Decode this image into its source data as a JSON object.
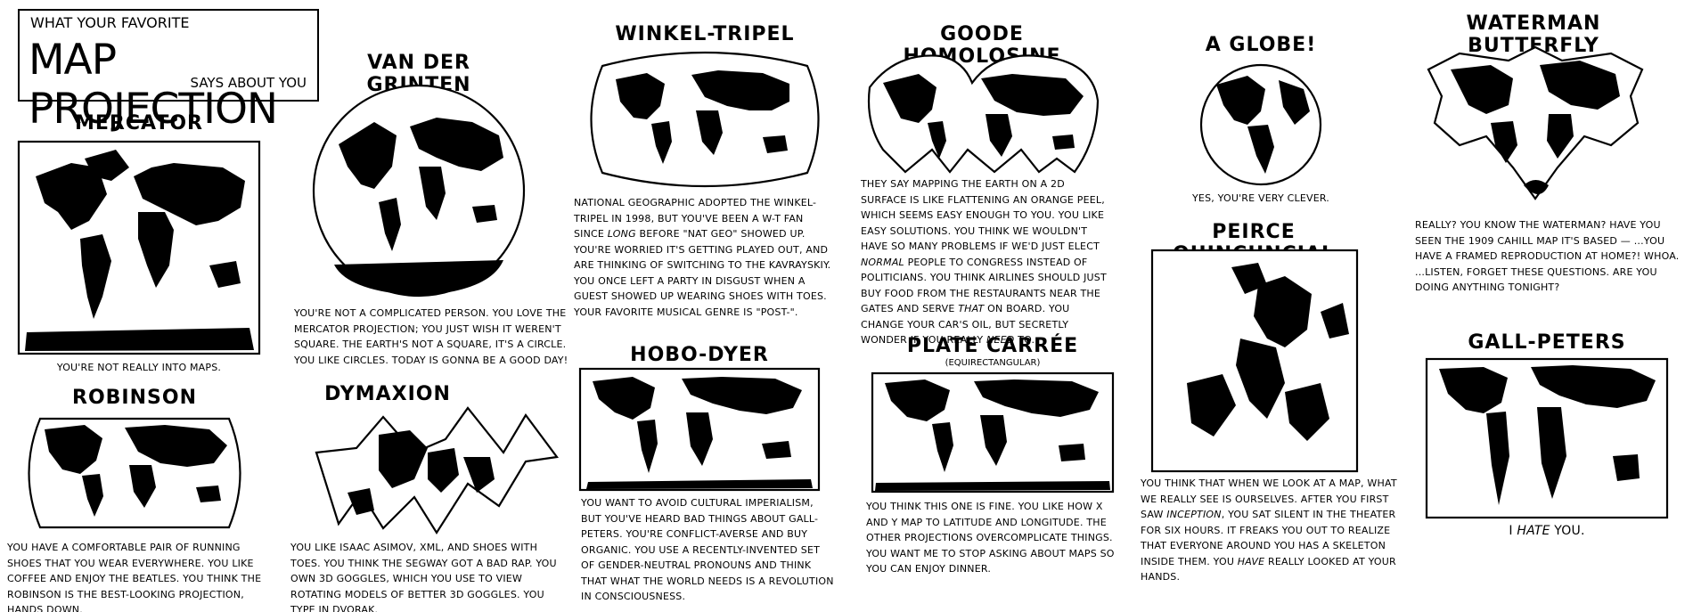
{
  "header": {
    "top": "What your favorite",
    "main": "Map Projection",
    "bottom": "says about you"
  },
  "panels": {
    "mercator": {
      "title": "Mercator",
      "caption": "You're not really into maps."
    },
    "van_der_grinten": {
      "title": "Van der Grinten",
      "caption": "You're not a complicated person. You love the Mercator projection; you just wish it weren't square. The earth's not a square, it's a circle. You like circles. Today is gonna be a good day!"
    },
    "winkel_tripel": {
      "title": "Winkel-Tripel",
      "caption_parts": [
        "National Geographic adopted the Winkel-Tripel in 1998, but you've been a W-T fan since ",
        "long",
        " before \"Nat Geo\" showed up. You're worried it's getting played out, and are thinking of switching to the Kavrayskiy. You once left a party in disgust when a guest showed up wearing shoes with toes. Your favorite musical genre is \"post-\"."
      ]
    },
    "goode": {
      "title": "Goode Homolosine",
      "caption_parts": [
        "They say mapping the Earth on a 2D surface is like flattening an orange peel, which seems easy enough to you. You like easy solutions. You think we wouldn't have so many problems if we'd just elect ",
        "normal",
        " people to Congress instead of politicians. You think airlines should just buy food from the restaurants near the gates and serve ",
        "that",
        " on board. You change your car's oil, but secretly wonder if you really ",
        "need",
        " to."
      ]
    },
    "globe": {
      "title": "A Globe!",
      "caption": "Yes, you're very clever."
    },
    "waterman": {
      "title": "Waterman Butterfly",
      "caption": "Really? You know the Waterman? Have you seen the 1909 Cahill map it's based — ...you have a framed reproduction at home?! Whoa. ...Listen, forget these questions. Are you doing anything tonight?"
    },
    "robinson": {
      "title": "Robinson",
      "caption": "You have a comfortable pair of running shoes that you wear everywhere. You like coffee and enjoy the Beatles. You think the Robinson is the best-looking projection, hands down."
    },
    "dymaxion": {
      "title": "Dymaxion",
      "caption": "You like Isaac Asimov, XML, and shoes with toes. You think the Segway got a bad rap. You own 3D goggles, which you use to view rotating models of better 3D goggles. You type in Dvorak."
    },
    "hobo_dyer": {
      "title": "Hobo-Dyer",
      "caption": "You want to avoid cultural imperialism, but you've heard bad things about Gall-Peters. You're conflict-averse and buy organic. You use a recently-invented set of gender-neutral pronouns and think that what the world needs is a revolution in consciousness."
    },
    "plate_carree": {
      "title": "Plate Carrée",
      "subtitle": "(Equirectangular)",
      "caption": "You think this one is fine. You like how X and Y map to latitude and longitude. The other projections overcomplicate things. You want me to stop asking about maps so you can enjoy dinner."
    },
    "peirce": {
      "title": "Peirce Quincuncial",
      "caption_parts": [
        "You think that when we look at a map, what we really see is ourselves. After you first saw ",
        "Inception",
        ", you sat silent in the theater for six hours. It freaks you out to realize that everyone around you has a skeleton inside them. You ",
        "have",
        " really looked at your hands."
      ]
    },
    "gall_peters": {
      "title": "Gall-Peters",
      "caption_parts": [
        "I ",
        "hate",
        " you."
      ]
    }
  }
}
